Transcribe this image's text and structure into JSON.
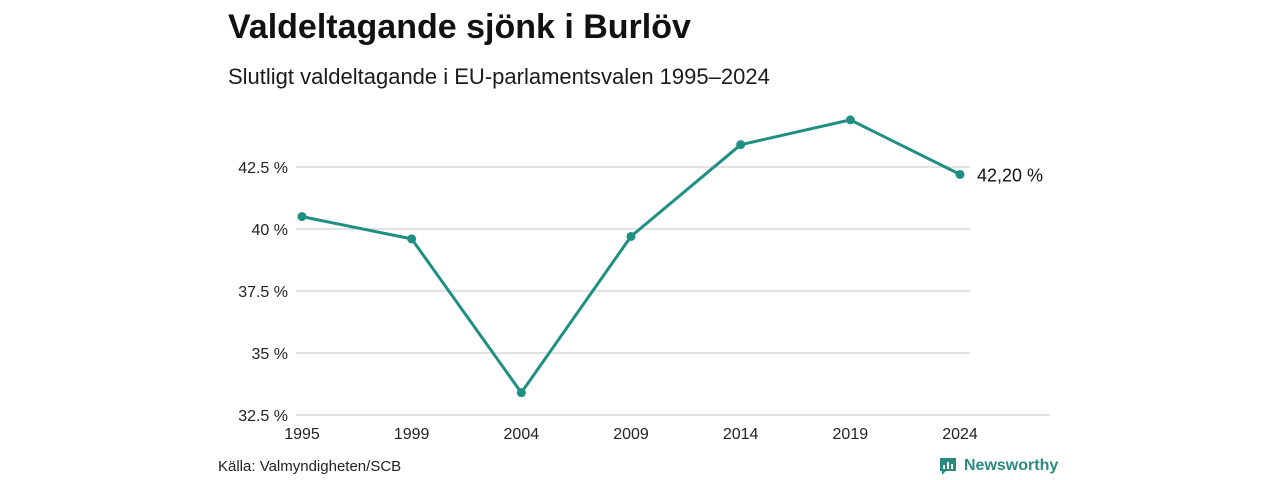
{
  "header": {
    "title": "Valdeltagande sjönk i Burlöv",
    "subtitle": "Slutligt valdeltagande i EU-parlamentsvalen 1995–2024"
  },
  "footer": {
    "source": "Källa: Valmyndigheten/SCB",
    "brand": "Newsworthy",
    "brand_icon": "newsworthy-logo-icon"
  },
  "colors": {
    "line": "#1f8f82",
    "grid": "#d9d9d9",
    "brand": "#2b8a7e"
  },
  "chart_data": {
    "type": "line",
    "title": "Valdeltagande sjönk i Burlöv",
    "subtitle": "Slutligt valdeltagande i EU-parlamentsvalen 1995–2024",
    "x": [
      "1995",
      "1999",
      "2004",
      "2009",
      "2014",
      "2019",
      "2024"
    ],
    "series": [
      {
        "values": [
          40.5,
          39.6,
          33.4,
          39.7,
          43.4,
          44.4,
          42.2
        ]
      }
    ],
    "y_ticks": [
      32.5,
      35,
      37.5,
      40,
      42.5
    ],
    "y_tick_labels": [
      "32.5 %",
      "35 %",
      "37.5 %",
      "40 %",
      "42.5 %"
    ],
    "ylim": [
      32.5,
      44.4
    ],
    "end_label": "42,20 %",
    "grid": true,
    "legend": "none"
  }
}
